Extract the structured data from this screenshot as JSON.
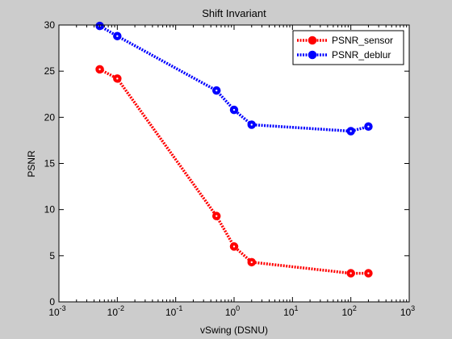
{
  "chart_data": {
    "type": "line",
    "title": "Shift Invariant",
    "xlabel": "vSwing (DSNU)",
    "ylabel": "PSNR",
    "xscale": "log",
    "xlim": [
      0.001,
      1000
    ],
    "ylim": [
      0,
      30
    ],
    "x_ticks": [
      0.001,
      0.01,
      0.1,
      1,
      10,
      100,
      1000
    ],
    "x_tick_labels": [
      {
        "base": "10",
        "exp": "-3"
      },
      {
        "base": "10",
        "exp": "-2"
      },
      {
        "base": "10",
        "exp": "-1"
      },
      {
        "base": "10",
        "exp": "0"
      },
      {
        "base": "10",
        "exp": "1"
      },
      {
        "base": "10",
        "exp": "2"
      },
      {
        "base": "10",
        "exp": "3"
      }
    ],
    "y_ticks": [
      0,
      5,
      10,
      15,
      20,
      25,
      30
    ],
    "y_tick_labels": [
      "0",
      "5",
      "10",
      "15",
      "20",
      "25",
      "30"
    ],
    "grid": false,
    "legend_position": "top-right",
    "series": [
      {
        "name": "PSNR_sensor",
        "color": "#ff0000",
        "x": [
          0.005,
          0.01,
          0.5,
          1,
          2,
          100,
          200
        ],
        "y": [
          25.2,
          24.2,
          9.3,
          6.0,
          4.3,
          3.1,
          3.1
        ]
      },
      {
        "name": "PSNR_deblur",
        "color": "#0000ff",
        "x": [
          0.005,
          0.01,
          0.5,
          1,
          2,
          100,
          200
        ],
        "y": [
          29.9,
          28.8,
          22.9,
          20.8,
          19.2,
          18.5,
          19.0
        ]
      }
    ]
  }
}
